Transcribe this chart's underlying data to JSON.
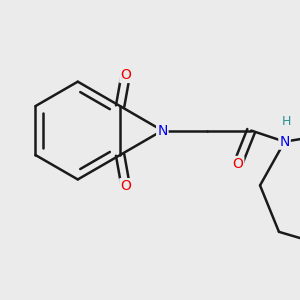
{
  "background_color": "#ebebeb",
  "line_color": "#1a1a1a",
  "bond_width": 1.8,
  "atom_colors": {
    "N": "#0000ee",
    "O": "#ee0000",
    "H": "#2a9090",
    "C": "#1a1a1a"
  },
  "font_size_atoms": 10,
  "font_size_H": 9
}
